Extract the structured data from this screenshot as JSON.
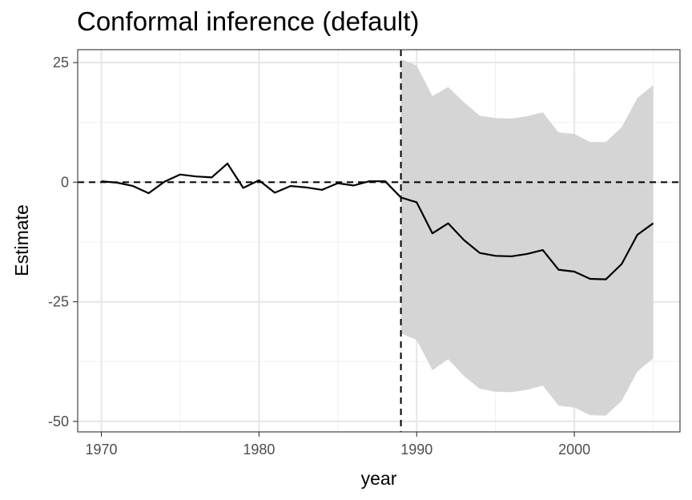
{
  "chart_data": {
    "type": "line",
    "title": "Conformal inference (default)",
    "xlabel": "year",
    "ylabel": "Estimate",
    "xlim": [
      1968.5,
      2006.7
    ],
    "ylim": [
      -52.2,
      27.7
    ],
    "x_ticks": [
      1970,
      1980,
      1990,
      2000
    ],
    "x_tick_labels": [
      "1970",
      "1980",
      "1990",
      "2000"
    ],
    "y_ticks": [
      25,
      0,
      -25,
      -50
    ],
    "y_tick_labels": [
      "25",
      "0",
      "-25",
      "-50"
    ],
    "grid": true,
    "theme": "bw",
    "reference_lines": {
      "hline_y": 0,
      "vline_x": 1989,
      "style": "dashed"
    },
    "series": [
      {
        "type": "line",
        "color": "#000000",
        "x": [
          1970,
          1971,
          1972,
          1973,
          1974,
          1975,
          1976,
          1977,
          1978,
          1979,
          1980,
          1981,
          1982,
          1983,
          1984,
          1985,
          1986,
          1987,
          1988,
          1989,
          1990,
          1991,
          1992,
          1993,
          1994,
          1995,
          1996,
          1997,
          1998,
          1999,
          2000,
          2001,
          2002,
          2003,
          2004,
          2005
        ],
        "y": [
          0.2,
          -0.1,
          -0.8,
          -2.3,
          0.1,
          1.6,
          1.2,
          1.0,
          3.9,
          -1.2,
          0.4,
          -2.2,
          -0.8,
          -1.1,
          -1.6,
          -0.2,
          -0.7,
          0.2,
          0.2,
          -3.2,
          -4.2,
          -10.7,
          -8.6,
          -12.1,
          -14.8,
          -15.4,
          -15.5,
          -15.0,
          -14.2,
          -18.3,
          -18.7,
          -20.2,
          -20.3,
          -17.1,
          -11.0,
          -8.6
        ]
      },
      {
        "type": "ribbon",
        "color": "#d3d3d3",
        "x": [
          1989,
          1990,
          1991,
          1992,
          1993,
          1994,
          1995,
          1996,
          1997,
          1998,
          1999,
          2000,
          2001,
          2002,
          2003,
          2004,
          2005
        ],
        "upper": [
          25.7,
          24.4,
          18.0,
          19.9,
          16.7,
          13.9,
          13.4,
          13.3,
          13.8,
          14.6,
          10.4,
          10.1,
          8.4,
          8.4,
          11.5,
          17.6,
          20.3
        ],
        "lower": [
          -31.6,
          -33.0,
          -39.3,
          -37.0,
          -40.5,
          -43.2,
          -43.8,
          -43.9,
          -43.4,
          -42.5,
          -46.7,
          -47.1,
          -48.7,
          -48.8,
          -45.7,
          -39.6,
          -36.8
        ]
      }
    ]
  }
}
